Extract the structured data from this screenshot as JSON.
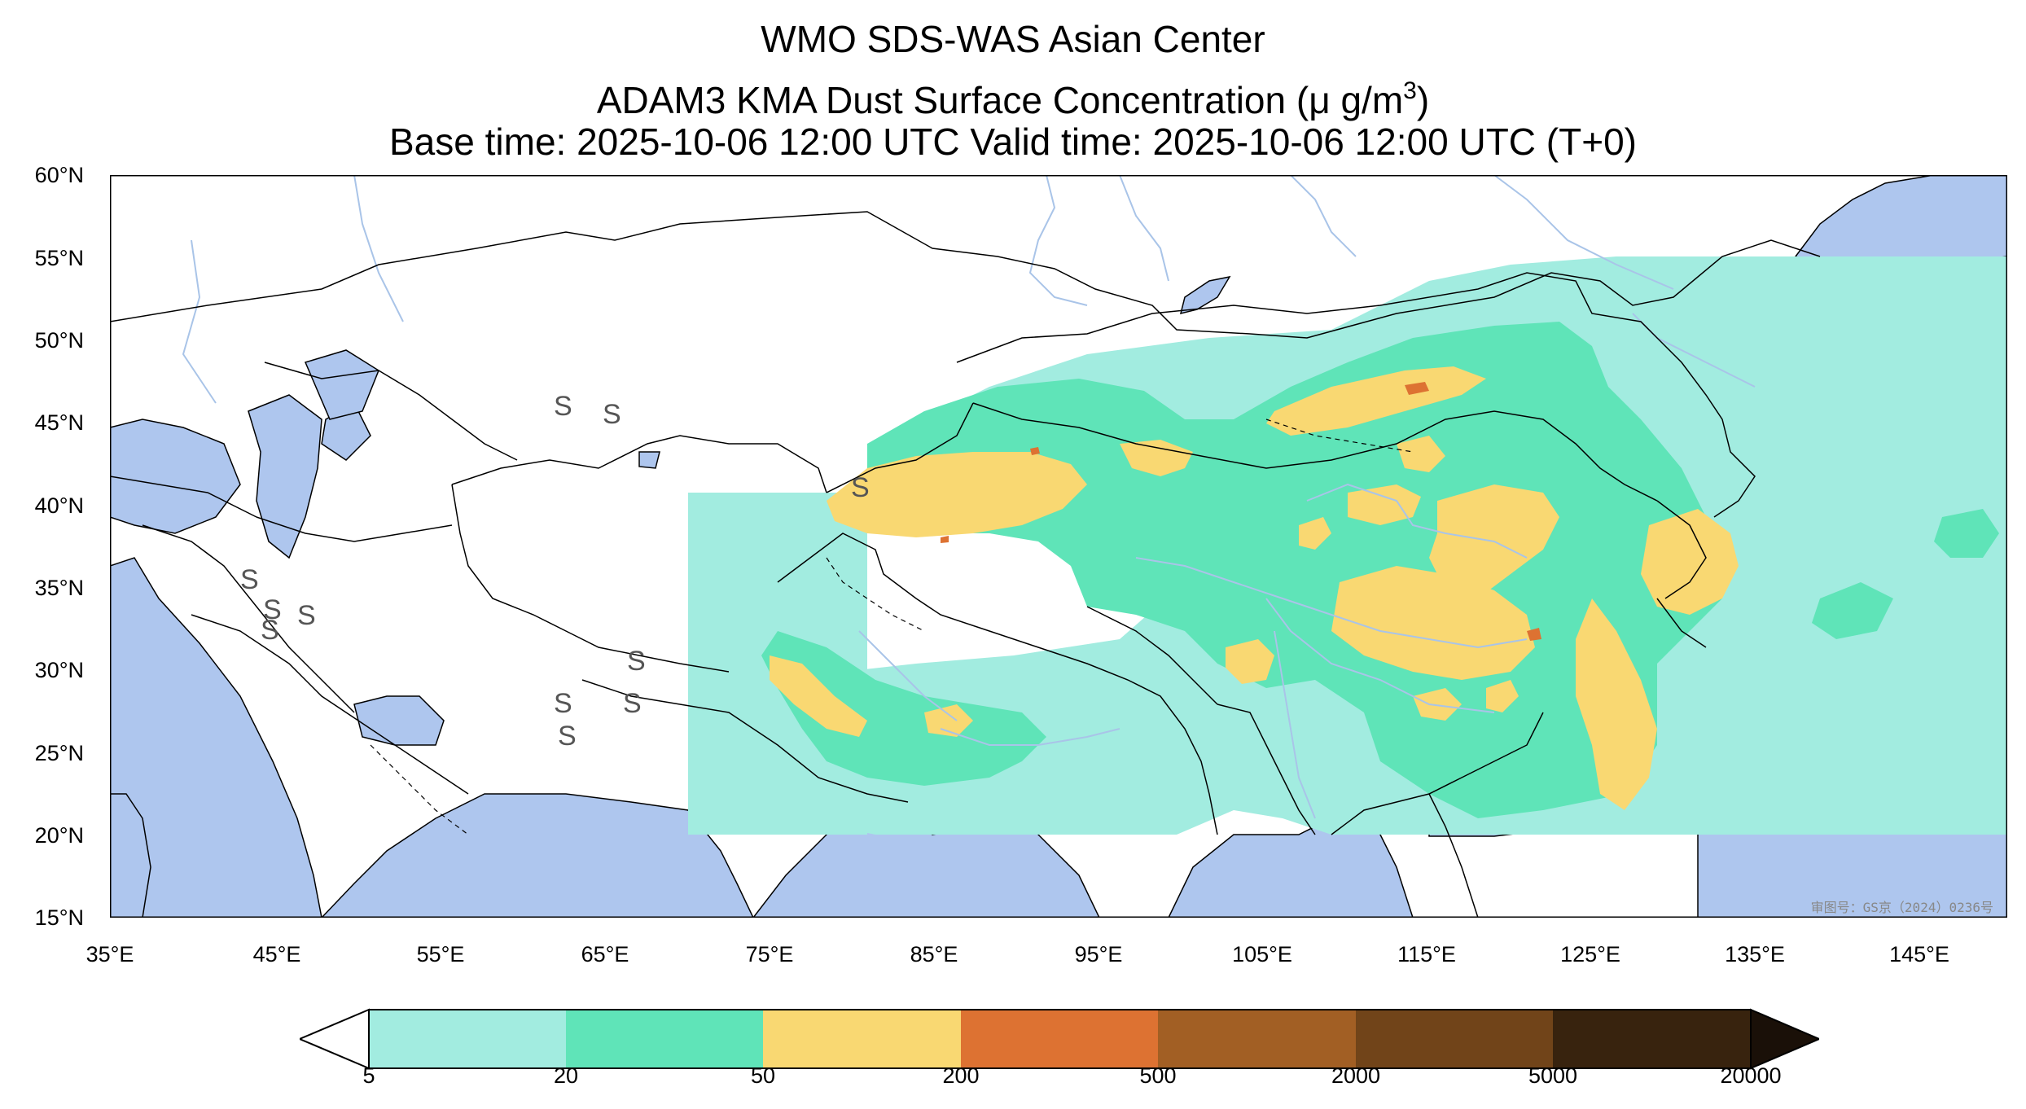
{
  "title": {
    "line1": "WMO SDS-WAS Asian Center",
    "line2_prefix": "ADAM3 KMA Dust Surface Concentration (",
    "line2_unit": "μ g/m",
    "line2_sup": "3",
    "line2_suffix": ")",
    "line3": "Base time: 2025-10-06 12:00 UTC Valid time: 2025-10-06 12:00 UTC (T+0)"
  },
  "map": {
    "lat_labels": [
      "60°N",
      "55°N",
      "50°N",
      "45°N",
      "40°N",
      "35°N",
      "30°N",
      "25°N",
      "20°N",
      "15°N"
    ],
    "lon_labels": [
      "35°E",
      "45°E",
      "55°E",
      "65°E",
      "75°E",
      "85°E",
      "95°E",
      "105°E",
      "115°E",
      "125°E",
      "135°E",
      "145°E"
    ],
    "ocean_color": "#aec6ee",
    "river_color": "#a9c4e8",
    "dust_symbol": "S",
    "approval_text": "审图号：GS京（2024）0236号"
  },
  "colorbar": {
    "boundaries": [
      "5",
      "20",
      "50",
      "200",
      "500",
      "2000",
      "5000",
      "20000"
    ],
    "colors": [
      "#a2ece0",
      "#5fe4b8",
      "#f9d872",
      "#dd7232",
      "#a25f24",
      "#714419",
      "#38230e"
    ],
    "under_color": "#ffffff",
    "over_color": "#1a1008",
    "extend": "both"
  }
}
